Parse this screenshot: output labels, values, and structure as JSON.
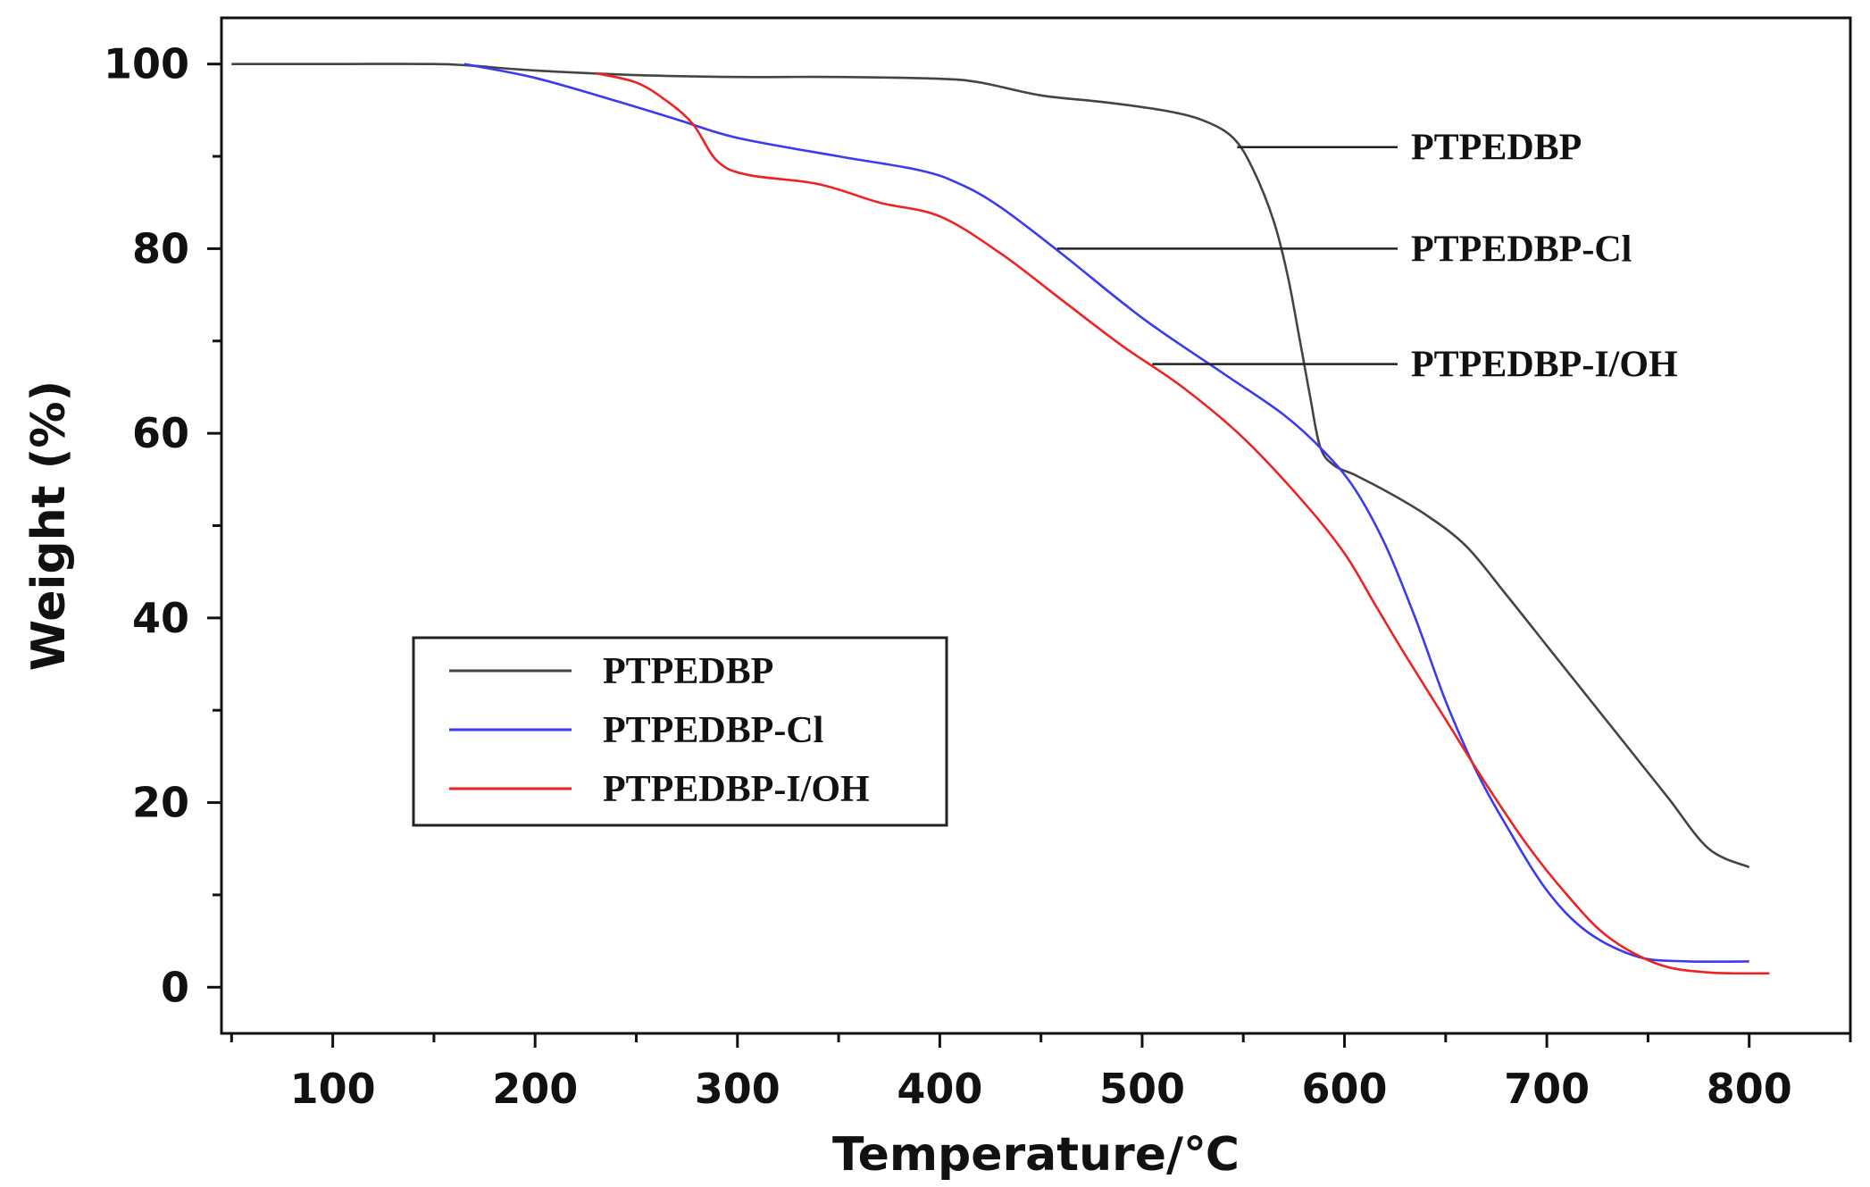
{
  "chart_data": {
    "type": "line",
    "title": "",
    "xlabel": "Temperature/℃",
    "ylabel": "Weight (%)",
    "xlim": [
      45,
      850
    ],
    "ylim": [
      -5,
      105
    ],
    "x_ticks": [
      100,
      200,
      300,
      400,
      500,
      600,
      700,
      800
    ],
    "x_minor_ticks": [
      50,
      150,
      250,
      350,
      450,
      550,
      650,
      750,
      850
    ],
    "y_ticks": [
      0,
      20,
      40,
      60,
      80,
      100
    ],
    "y_minor_ticks": [
      10,
      30,
      50,
      70,
      90
    ],
    "grid": false,
    "legend_position": "lower-left",
    "series": [
      {
        "name": "PTPEDBP",
        "color": "#444444",
        "points": [
          [
            50,
            100
          ],
          [
            100,
            100
          ],
          [
            150,
            100
          ],
          [
            170,
            99.8
          ],
          [
            200,
            99.3
          ],
          [
            250,
            98.8
          ],
          [
            300,
            98.6
          ],
          [
            350,
            98.6
          ],
          [
            400,
            98.4
          ],
          [
            420,
            98.0
          ],
          [
            450,
            96.6
          ],
          [
            480,
            95.9
          ],
          [
            510,
            95.0
          ],
          [
            530,
            93.9
          ],
          [
            545,
            92.0
          ],
          [
            555,
            88.5
          ],
          [
            565,
            83.0
          ],
          [
            572,
            77.0
          ],
          [
            578,
            70.0
          ],
          [
            583,
            64.0
          ],
          [
            588,
            58.5
          ],
          [
            595,
            56.5
          ],
          [
            605,
            55.5
          ],
          [
            620,
            53.8
          ],
          [
            640,
            51.2
          ],
          [
            660,
            47.8
          ],
          [
            680,
            42.5
          ],
          [
            700,
            37.0
          ],
          [
            720,
            31.5
          ],
          [
            740,
            26.0
          ],
          [
            760,
            20.5
          ],
          [
            780,
            15.0
          ],
          [
            800,
            13.0
          ]
        ]
      },
      {
        "name": "PTPEDBP-Cl",
        "color": "#3a3af0",
        "points": [
          [
            165,
            100
          ],
          [
            200,
            98.5
          ],
          [
            240,
            96.0
          ],
          [
            270,
            94.0
          ],
          [
            300,
            92.0
          ],
          [
            350,
            90.0
          ],
          [
            390,
            88.5
          ],
          [
            410,
            87.0
          ],
          [
            430,
            84.5
          ],
          [
            460,
            79.5
          ],
          [
            500,
            72.5
          ],
          [
            540,
            66.5
          ],
          [
            570,
            62.0
          ],
          [
            590,
            58.0
          ],
          [
            605,
            54.0
          ],
          [
            620,
            48.0
          ],
          [
            635,
            40.0
          ],
          [
            650,
            31.0
          ],
          [
            665,
            23.5
          ],
          [
            680,
            17.5
          ],
          [
            700,
            10.5
          ],
          [
            720,
            6.0
          ],
          [
            745,
            3.3
          ],
          [
            770,
            2.8
          ],
          [
            800,
            2.8
          ]
        ]
      },
      {
        "name": "PTPEDBP-I/OH",
        "color": "#ee2222",
        "points": [
          [
            230,
            99.0
          ],
          [
            250,
            98.0
          ],
          [
            265,
            96.0
          ],
          [
            278,
            93.5
          ],
          [
            290,
            89.5
          ],
          [
            305,
            88.0
          ],
          [
            340,
            87.0
          ],
          [
            370,
            85.0
          ],
          [
            400,
            83.5
          ],
          [
            430,
            79.5
          ],
          [
            460,
            74.5
          ],
          [
            490,
            69.5
          ],
          [
            520,
            65.0
          ],
          [
            550,
            59.5
          ],
          [
            580,
            52.5
          ],
          [
            600,
            47.0
          ],
          [
            615,
            41.5
          ],
          [
            630,
            36.0
          ],
          [
            650,
            29.0
          ],
          [
            670,
            22.0
          ],
          [
            690,
            15.5
          ],
          [
            710,
            10.0
          ],
          [
            730,
            5.5
          ],
          [
            755,
            2.5
          ],
          [
            780,
            1.6
          ],
          [
            810,
            1.5
          ]
        ]
      }
    ],
    "annotations": [
      {
        "text": "PTPEDBP",
        "series": "PTPEDBP",
        "at": [
          547,
          91
        ]
      },
      {
        "text": "PTPEDBP-Cl",
        "series": "PTPEDBP-Cl",
        "at": [
          458,
          80
        ]
      },
      {
        "text": "PTPEDBP-I/OH",
        "series": "PTPEDBP-I/OH",
        "at": [
          505,
          67.5
        ]
      }
    ],
    "legend": [
      {
        "label": "PTPEDBP",
        "color": "#444444"
      },
      {
        "label": "PTPEDBP-Cl",
        "color": "#3a3af0"
      },
      {
        "label": "PTPEDBP-I/OH",
        "color": "#ee2222"
      }
    ]
  }
}
